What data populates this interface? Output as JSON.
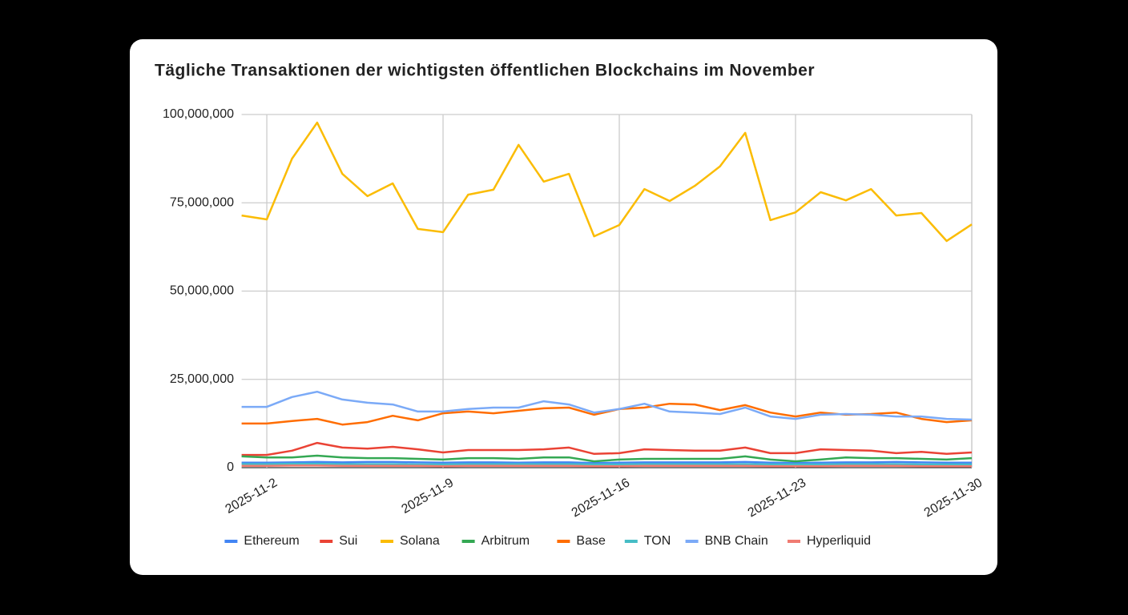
{
  "chart_data": {
    "type": "line",
    "title": "Tägliche Transaktionen der wichtigsten öffentlichen Blockchains im November",
    "x": [
      "2025-11-1",
      "2025-11-2",
      "2025-11-3",
      "2025-11-4",
      "2025-11-5",
      "2025-11-6",
      "2025-11-7",
      "2025-11-8",
      "2025-11-9",
      "2025-11-10",
      "2025-11-11",
      "2025-11-12",
      "2025-11-13",
      "2025-11-14",
      "2025-11-15",
      "2025-11-16",
      "2025-11-17",
      "2025-11-18",
      "2025-11-19",
      "2025-11-20",
      "2025-11-21",
      "2025-11-22",
      "2025-11-23",
      "2025-11-24",
      "2025-11-25",
      "2025-11-26",
      "2025-11-27",
      "2025-11-28",
      "2025-11-29",
      "2025-11-30"
    ],
    "xticks": [
      "2025-11-2",
      "2025-11-9",
      "2025-11-16",
      "2025-11-23",
      "2025-11-30"
    ],
    "ylim": [
      0,
      100000000
    ],
    "yticks": [
      0,
      {
        "value": 25000000,
        "label": "25,000,000"
      },
      {
        "value": 50000000,
        "label": "50,000,000"
      },
      {
        "value": 75000000,
        "label": "75,000,000"
      },
      {
        "value": 100000000,
        "label": "100,000,000"
      }
    ],
    "grid": true,
    "legend": "bottom",
    "series": [
      {
        "name": "Ethereum",
        "color": "#4285f4",
        "values": [
          1400000,
          1400000,
          1500000,
          1600000,
          1500000,
          1600000,
          1600000,
          1500000,
          1400000,
          1500000,
          1500000,
          1400000,
          1500000,
          1500000,
          1300000,
          1400000,
          1500000,
          1500000,
          1500000,
          1500000,
          1600000,
          1400000,
          1300000,
          1400000,
          1500000,
          1500000,
          1600000,
          1500000,
          1400000,
          1400000
        ]
      },
      {
        "name": "Sui",
        "color": "#ea4335",
        "values": [
          3600000,
          3600000,
          4800000,
          7000000,
          5700000,
          5400000,
          5900000,
          5200000,
          4300000,
          5000000,
          5000000,
          5000000,
          5200000,
          5700000,
          3900000,
          4100000,
          5200000,
          5000000,
          4800000,
          4800000,
          5700000,
          4100000,
          4100000,
          5200000,
          5000000,
          4800000,
          4100000,
          4500000,
          3900000,
          4300000
        ]
      },
      {
        "name": "Solana",
        "color": "#fbbc04",
        "values": [
          71400000,
          70300000,
          87500000,
          97700000,
          83200000,
          76900000,
          80500000,
          67600000,
          66700000,
          77300000,
          78700000,
          91400000,
          81000000,
          83200000,
          65500000,
          68700000,
          78900000,
          75500000,
          79800000,
          85300000,
          94800000,
          70100000,
          72300000,
          78000000,
          75700000,
          78900000,
          71400000,
          72100000,
          64200000,
          68900000
        ]
      },
      {
        "name": "Arbitrum",
        "color": "#34a853",
        "values": [
          3200000,
          2900000,
          2900000,
          3400000,
          2900000,
          2700000,
          2700000,
          2500000,
          2300000,
          2700000,
          2700000,
          2500000,
          2900000,
          2900000,
          1800000,
          2300000,
          2500000,
          2500000,
          2500000,
          2500000,
          3200000,
          2300000,
          1800000,
          2300000,
          2900000,
          2700000,
          2700000,
          2500000,
          2300000,
          2700000
        ]
      },
      {
        "name": "Base",
        "color": "#ff6d01",
        "values": [
          12500000,
          12500000,
          13200000,
          13800000,
          12200000,
          12900000,
          14700000,
          13400000,
          15400000,
          15900000,
          15400000,
          16100000,
          16800000,
          17000000,
          15000000,
          16600000,
          17000000,
          18100000,
          17900000,
          16300000,
          17700000,
          15600000,
          14500000,
          15600000,
          15000000,
          15200000,
          15600000,
          13800000,
          12900000,
          13400000
        ]
      },
      {
        "name": "TON",
        "color": "#46bdc6",
        "values": [
          1000000,
          1000000,
          1100000,
          1100000,
          1000000,
          1000000,
          1000000,
          900000,
          900000,
          1000000,
          1000000,
          1000000,
          1000000,
          1000000,
          900000,
          900000,
          1000000,
          1000000,
          1000000,
          1000000,
          1000000,
          900000,
          900000,
          900000,
          1000000,
          1000000,
          1000000,
          900000,
          900000,
          900000
        ]
      },
      {
        "name": "BNB Chain",
        "color": "#7baaf7",
        "values": [
          17200000,
          17200000,
          20000000,
          21500000,
          19300000,
          18400000,
          17900000,
          15900000,
          15900000,
          16600000,
          17000000,
          17000000,
          18800000,
          17900000,
          15600000,
          16600000,
          18100000,
          15900000,
          15600000,
          15200000,
          17000000,
          14500000,
          13800000,
          15000000,
          15200000,
          15000000,
          14500000,
          14500000,
          13800000,
          13600000
        ]
      },
      {
        "name": "Hyperliquid",
        "color": "#f07b72",
        "values": [
          500000,
          500000,
          600000,
          600000,
          500000,
          500000,
          500000,
          500000,
          400000,
          500000,
          500000,
          500000,
          500000,
          500000,
          400000,
          400000,
          500000,
          500000,
          500000,
          500000,
          500000,
          400000,
          400000,
          400000,
          500000,
          500000,
          500000,
          400000,
          400000,
          400000
        ]
      }
    ]
  }
}
